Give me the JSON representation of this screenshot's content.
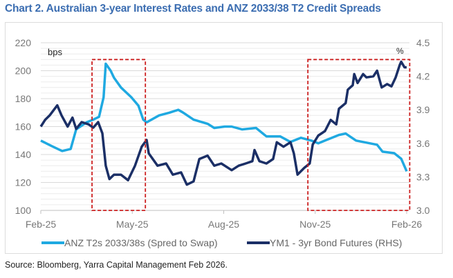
{
  "title": "Chart 2. Australian 3-year Interest Rates and ANZ 2033/38 T2 Credit Spreads",
  "source": "Source: Bloomberg, Yarra Capital Management Feb 2026.",
  "chart_data": {
    "type": "line",
    "title": "Chart 2. Australian 3-year Interest Rates and ANZ 2033/38 T2 Credit Spreads",
    "left_axis": {
      "label": "bps",
      "ylim": [
        100,
        220
      ],
      "ticks": [
        100,
        120,
        140,
        160,
        180,
        200,
        220
      ],
      "tick_labels": [
        "100",
        "120",
        "140",
        "160",
        "180",
        "200",
        "220"
      ]
    },
    "right_axis": {
      "label": "%",
      "ylim": [
        3.0,
        4.5
      ],
      "ticks": [
        3.0,
        3.3,
        3.6,
        3.9,
        4.2,
        4.5
      ],
      "tick_labels": [
        "3.0",
        "3.3",
        "3.6",
        "3.9",
        "4.2",
        "4.5"
      ]
    },
    "x_axis": {
      "unit": "months since Feb-25",
      "xlim": [
        0,
        12
      ],
      "ticks": [
        0,
        3,
        6,
        9,
        12
      ],
      "tick_labels": [
        "Feb-25",
        "May-25",
        "Aug-25",
        "Nov-25",
        "Feb-26"
      ]
    },
    "grid": true,
    "legend_position": "bottom",
    "series": [
      {
        "name": "ANZ T2s 2033/38s (Spred to Swap)",
        "axis": "left",
        "color": "#1fa9e1",
        "x": [
          0,
          0.36,
          0.7,
          0.98,
          1.16,
          1.5,
          1.72,
          1.91,
          2.06,
          2.13,
          2.29,
          2.4,
          2.63,
          2.97,
          3.2,
          3.36,
          3.47,
          3.88,
          4.22,
          4.51,
          4.67,
          5.01,
          5.47,
          5.69,
          6.03,
          6.26,
          6.6,
          7.06,
          7.4,
          7.85,
          8.19,
          8.53,
          8.87,
          9.1,
          9.32,
          9.78,
          10.0,
          10.34,
          10.8,
          11.03,
          11.21,
          11.59,
          11.82,
          12.0
        ],
        "y": [
          150,
          146,
          142.5,
          144,
          158,
          163,
          165,
          167,
          181,
          205,
          200,
          195,
          188,
          181,
          175,
          165,
          163,
          168,
          170,
          172,
          170,
          165,
          162,
          159,
          160,
          160,
          158,
          159,
          153,
          153,
          149,
          152,
          150,
          148,
          150,
          154,
          155,
          150,
          148,
          147,
          142,
          141,
          137,
          128
        ]
      },
      {
        "name": "YM1 - 3yr Bond Futures (RHS)",
        "axis": "right",
        "color": "#1b2f66",
        "x": [
          0,
          0.14,
          0.29,
          0.54,
          0.68,
          0.88,
          1.04,
          1.16,
          1.34,
          1.57,
          1.72,
          1.88,
          2.02,
          2.13,
          2.25,
          2.4,
          2.63,
          2.86,
          3.09,
          3.31,
          3.47,
          3.54,
          3.83,
          4.11,
          4.33,
          4.6,
          4.79,
          5.01,
          5.2,
          5.47,
          5.69,
          5.92,
          6.26,
          6.49,
          6.72,
          6.94,
          7.01,
          7.17,
          7.4,
          7.62,
          7.74,
          7.96,
          8.19,
          8.3,
          8.42,
          8.64,
          8.82,
          8.92,
          9.1,
          9.32,
          9.51,
          9.69,
          9.78,
          10.0,
          10.07,
          10.23,
          10.28,
          10.39,
          10.57,
          10.68,
          10.91,
          11.03,
          11.18,
          11.36,
          11.5,
          11.64,
          11.77,
          11.82,
          11.93,
          12.0
        ],
        "y": [
          3.75,
          3.81,
          3.85,
          3.94,
          3.85,
          3.75,
          3.83,
          3.73,
          3.79,
          3.77,
          3.74,
          3.79,
          3.69,
          3.4,
          3.28,
          3.32,
          3.32,
          3.27,
          3.4,
          3.57,
          3.63,
          3.51,
          3.4,
          3.42,
          3.32,
          3.34,
          3.23,
          3.26,
          3.46,
          3.49,
          3.4,
          3.42,
          3.36,
          3.4,
          3.42,
          3.44,
          3.54,
          3.44,
          3.42,
          3.46,
          3.61,
          3.57,
          3.61,
          3.51,
          3.32,
          3.38,
          3.42,
          3.59,
          3.67,
          3.71,
          3.81,
          3.77,
          3.91,
          3.96,
          4.08,
          4.12,
          4.22,
          4.14,
          4.22,
          4.19,
          4.2,
          4.25,
          4.1,
          4.13,
          4.11,
          4.19,
          4.3,
          4.33,
          4.28,
          4.28
        ]
      }
    ],
    "annotations": [
      {
        "type": "dashed-box",
        "color": "#cc1f1f",
        "x_range": [
          1.68,
          3.43
        ],
        "y_range_bps": [
          100,
          208
        ]
      },
      {
        "type": "dashed-box",
        "color": "#cc1f1f",
        "x_range": [
          8.76,
          12.1
        ],
        "y_range_bps": [
          100,
          208
        ]
      }
    ]
  }
}
